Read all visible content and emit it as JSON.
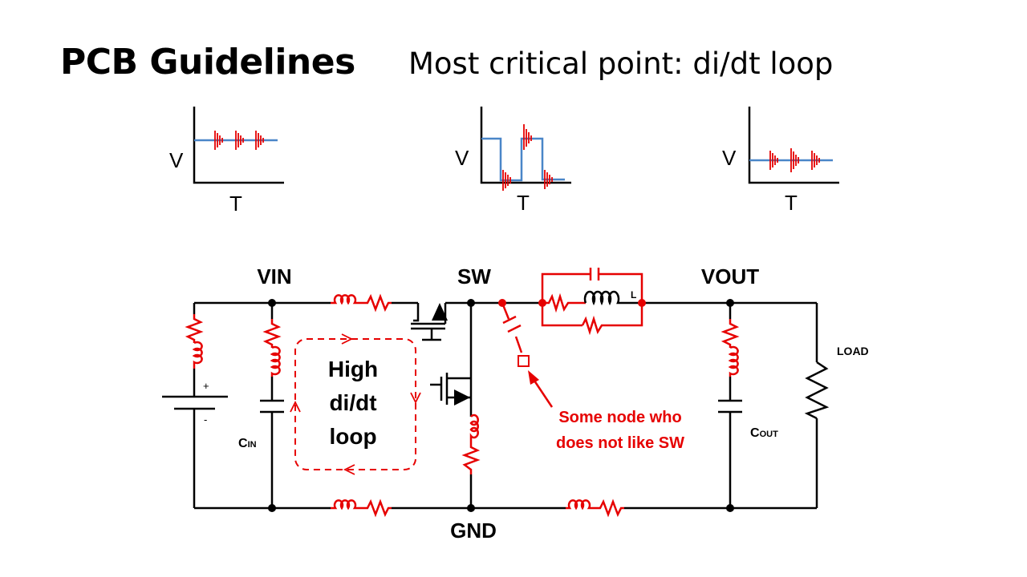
{
  "title": "PCB Guidelines",
  "subtitle": "Most critical point: di/dt loop",
  "waveforms": [
    {
      "v_label": "V",
      "t_label": "T"
    },
    {
      "v_label": "V",
      "t_label": "T"
    },
    {
      "v_label": "V",
      "t_label": "T"
    }
  ],
  "nodes": {
    "vin": "VIN",
    "sw": "SW",
    "vout": "VOUT",
    "gnd": "GND",
    "load": "LOAD"
  },
  "components": {
    "cin_main": "C",
    "cin_sub": "IN",
    "cout_main": "C",
    "cout_sub": "OUT",
    "inductor": "L",
    "plus": "+",
    "minus": "-"
  },
  "loop_label": [
    "High",
    "di/dt",
    "loop"
  ],
  "annotation": [
    "Some node who",
    "does not like SW"
  ],
  "colors": {
    "wire": "#000000",
    "parasitic": "#e60000",
    "waveform": "#4a86c8",
    "annotation": "#e60000"
  }
}
